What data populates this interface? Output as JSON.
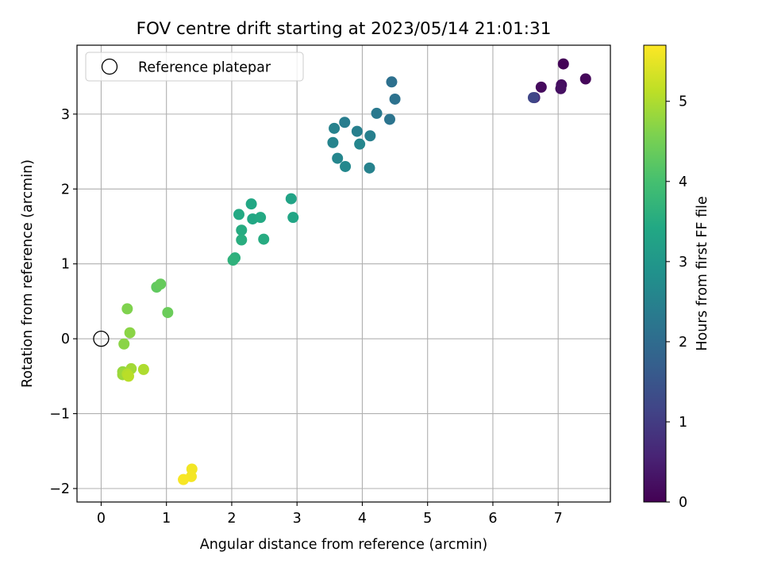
{
  "chart_data": {
    "type": "scatter",
    "title": "FOV centre drift starting at 2023/05/14 21:01:31",
    "xlabel": "Angular distance from reference (arcmin)",
    "ylabel": "Rotation from reference (arcmin)",
    "xlim": [
      -0.37,
      7.8
    ],
    "ylim": [
      -2.18,
      3.92
    ],
    "xticks": [
      "0",
      "1",
      "2",
      "3",
      "4",
      "5",
      "6",
      "7"
    ],
    "yticks": [
      "−2",
      "−1",
      "0",
      "1",
      "2",
      "3"
    ],
    "grid": true,
    "legend": {
      "position": "top-left",
      "label": "Reference platepar"
    },
    "reference_point": {
      "x": 0,
      "y": 0
    },
    "colorbar": {
      "label": "Hours from first FF file",
      "range": [
        0,
        5.7
      ],
      "ticks": [
        "0",
        "1",
        "2",
        "3",
        "4",
        "5"
      ],
      "colormap": "viridis",
      "stops": [
        "#440154",
        "#482475",
        "#414487",
        "#355f8d",
        "#2a788e",
        "#21918c",
        "#22a884",
        "#44bf70",
        "#7ad151",
        "#bddf26",
        "#fde725"
      ]
    },
    "points": [
      {
        "x": 7.08,
        "y": 3.67,
        "hours": 0.05
      },
      {
        "x": 7.42,
        "y": 3.47,
        "hours": 0.1
      },
      {
        "x": 6.74,
        "y": 3.36,
        "hours": 0.15
      },
      {
        "x": 7.05,
        "y": 3.39,
        "hours": 0.2
      },
      {
        "x": 7.04,
        "y": 3.34,
        "hours": 0.25
      },
      {
        "x": 6.64,
        "y": 3.22,
        "hours": 0.7
      },
      {
        "x": 6.62,
        "y": 3.22,
        "hours": 1.2
      },
      {
        "x": 4.45,
        "y": 3.43,
        "hours": 2.1
      },
      {
        "x": 4.5,
        "y": 3.2,
        "hours": 2.15
      },
      {
        "x": 4.42,
        "y": 2.93,
        "hours": 2.2
      },
      {
        "x": 4.22,
        "y": 3.01,
        "hours": 2.3
      },
      {
        "x": 3.73,
        "y": 2.89,
        "hours": 2.4
      },
      {
        "x": 3.92,
        "y": 2.77,
        "hours": 2.45
      },
      {
        "x": 3.57,
        "y": 2.81,
        "hours": 2.5
      },
      {
        "x": 3.55,
        "y": 2.62,
        "hours": 2.55
      },
      {
        "x": 4.12,
        "y": 2.71,
        "hours": 2.45
      },
      {
        "x": 3.96,
        "y": 2.6,
        "hours": 2.6
      },
      {
        "x": 3.62,
        "y": 2.41,
        "hours": 2.6
      },
      {
        "x": 3.74,
        "y": 2.3,
        "hours": 2.65
      },
      {
        "x": 4.11,
        "y": 2.28,
        "hours": 2.5
      },
      {
        "x": 2.91,
        "y": 1.87,
        "hours": 3.3
      },
      {
        "x": 2.94,
        "y": 1.62,
        "hours": 3.35
      },
      {
        "x": 2.3,
        "y": 1.8,
        "hours": 3.4
      },
      {
        "x": 2.11,
        "y": 1.66,
        "hours": 3.45
      },
      {
        "x": 2.32,
        "y": 1.6,
        "hours": 3.4
      },
      {
        "x": 2.44,
        "y": 1.62,
        "hours": 3.45
      },
      {
        "x": 2.15,
        "y": 1.45,
        "hours": 3.5
      },
      {
        "x": 2.15,
        "y": 1.32,
        "hours": 3.55
      },
      {
        "x": 2.49,
        "y": 1.33,
        "hours": 3.5
      },
      {
        "x": 2.05,
        "y": 1.08,
        "hours": 3.6
      },
      {
        "x": 2.02,
        "y": 1.05,
        "hours": 3.65
      },
      {
        "x": 0.85,
        "y": 0.69,
        "hours": 4.3
      },
      {
        "x": 0.91,
        "y": 0.73,
        "hours": 4.35
      },
      {
        "x": 1.02,
        "y": 0.35,
        "hours": 4.4
      },
      {
        "x": 0.4,
        "y": 0.4,
        "hours": 4.6
      },
      {
        "x": 0.44,
        "y": 0.08,
        "hours": 4.7
      },
      {
        "x": 0.35,
        "y": -0.07,
        "hours": 4.7
      },
      {
        "x": 0.33,
        "y": -0.44,
        "hours": 4.8
      },
      {
        "x": 0.33,
        "y": -0.48,
        "hours": 4.85
      },
      {
        "x": 0.46,
        "y": -0.4,
        "hours": 4.9
      },
      {
        "x": 0.65,
        "y": -0.41,
        "hours": 5.0
      },
      {
        "x": 0.4,
        "y": -0.47,
        "hours": 5.05
      },
      {
        "x": 0.42,
        "y": -0.5,
        "hours": 5.1
      },
      {
        "x": 1.39,
        "y": -1.74,
        "hours": 5.6
      },
      {
        "x": 1.38,
        "y": -1.84,
        "hours": 5.62
      },
      {
        "x": 1.26,
        "y": -1.88,
        "hours": 5.65
      }
    ]
  }
}
